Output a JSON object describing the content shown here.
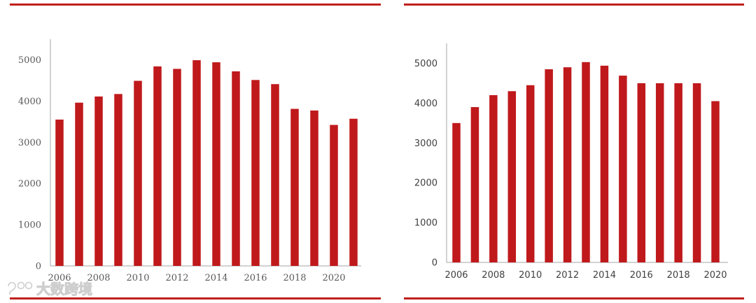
{
  "theme": {
    "bar_color": "#c0191c",
    "rule_color": "#c0201e",
    "axis_color": "#a6a6a6"
  },
  "watermark": {
    "text": "大数跨境"
  },
  "chart_data": [
    {
      "type": "bar",
      "title": "",
      "xlabel": "",
      "ylabel": "",
      "ylim": [
        0,
        5500
      ],
      "y_ticks": [
        0,
        1000,
        2000,
        3000,
        4000,
        5000
      ],
      "x_tick_labels": [
        "2006",
        "2008",
        "2010",
        "2012",
        "2014",
        "2016",
        "2018",
        "2020"
      ],
      "categories": [
        "2006",
        "2007",
        "2008",
        "2009",
        "2010",
        "2011",
        "2012",
        "2013",
        "2014",
        "2015",
        "2016",
        "2017",
        "2018",
        "2019",
        "2020",
        "2021"
      ],
      "values": [
        3550,
        3960,
        4110,
        4170,
        4490,
        4840,
        4780,
        4990,
        4940,
        4720,
        4510,
        4410,
        3810,
        3770,
        3420,
        3570
      ],
      "grid": false,
      "legend": "none"
    },
    {
      "type": "bar",
      "title": "",
      "xlabel": "",
      "ylabel": "",
      "ylim": [
        0,
        5500
      ],
      "y_ticks": [
        0,
        1000,
        2000,
        3000,
        4000,
        5000
      ],
      "x_tick_labels": [
        "2006",
        "2008",
        "2010",
        "2012",
        "2014",
        "2016",
        "2018",
        "2020"
      ],
      "categories": [
        "2006",
        "2007",
        "2008",
        "2009",
        "2010",
        "2011",
        "2012",
        "2013",
        "2014",
        "2015",
        "2016",
        "2017",
        "2018",
        "2019",
        "2020"
      ],
      "values": [
        3500,
        3900,
        4200,
        4300,
        4450,
        4850,
        4900,
        5030,
        4940,
        4690,
        4500,
        4500,
        4500,
        4500,
        4050
      ],
      "grid": false,
      "legend": "none"
    }
  ]
}
